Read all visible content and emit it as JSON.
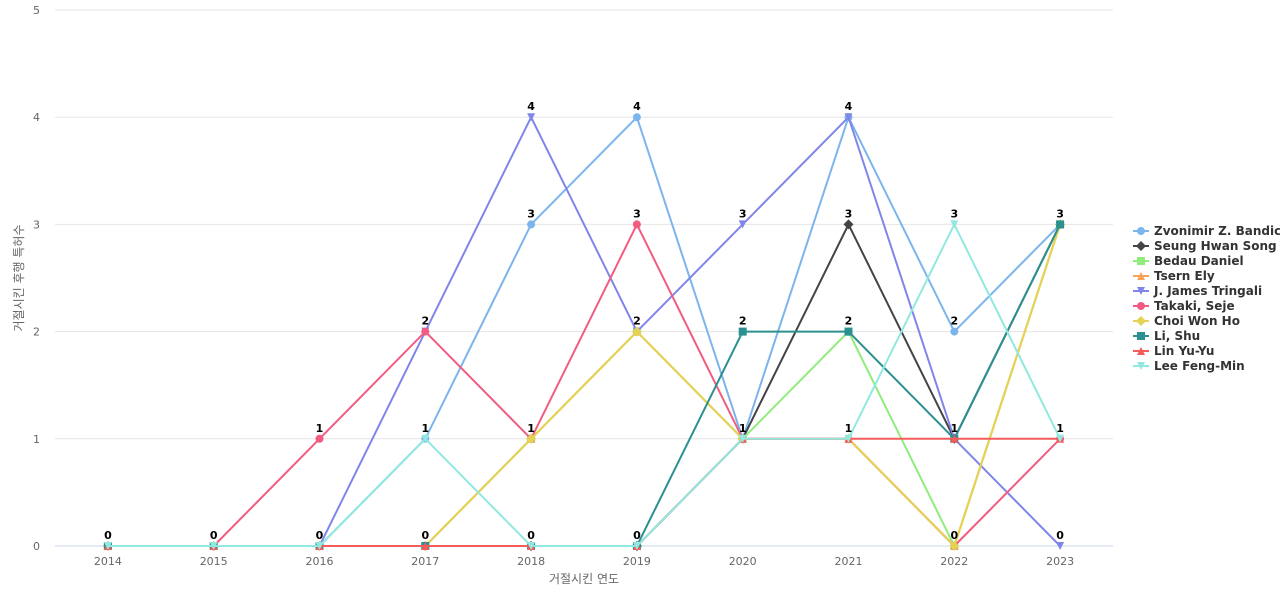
{
  "chart_data": {
    "type": "line",
    "title": "",
    "xlabel": "거절시킨 연도",
    "ylabel": "거절시킨 후행 특허수",
    "categories": [
      "2014",
      "2015",
      "2016",
      "2017",
      "2018",
      "2019",
      "2020",
      "2021",
      "2022",
      "2023"
    ],
    "ylim": [
      0,
      5
    ],
    "yticks": [
      0,
      1,
      2,
      3,
      4,
      5
    ],
    "grid": true,
    "legend_position": "right",
    "data_labels": [
      0,
      0,
      0,
      1,
      3,
      4,
      3,
      4,
      3,
      3
    ],
    "data_labels_extra": [
      {
        "x": "2016",
        "value": 1
      },
      {
        "x": "2017",
        "value": 2
      },
      {
        "x": "2017",
        "value": 0
      },
      {
        "x": "2018",
        "value": 4
      },
      {
        "x": "2018",
        "value": 1
      },
      {
        "x": "2018",
        "value": 0
      },
      {
        "x": "2019",
        "value": 3
      },
      {
        "x": "2019",
        "value": 2
      },
      {
        "x": "2019",
        "value": 0
      },
      {
        "x": "2020",
        "value": 2
      },
      {
        "x": "2020",
        "value": 1
      },
      {
        "x": "2021",
        "value": 3
      },
      {
        "x": "2021",
        "value": 2
      },
      {
        "x": "2021",
        "value": 1
      },
      {
        "x": "2022",
        "value": 2
      },
      {
        "x": "2022",
        "value": 1
      },
      {
        "x": "2022",
        "value": 0
      },
      {
        "x": "2023",
        "value": 1
      },
      {
        "x": "2023",
        "value": 0
      }
    ],
    "series": [
      {
        "name": "Zvonimir Z. Bandic",
        "color": "#7cb5ec",
        "marker": "circle",
        "values": [
          0,
          0,
          0,
          1,
          3,
          4,
          1,
          4,
          2,
          3
        ]
      },
      {
        "name": "Seung Hwan Song",
        "color": "#434348",
        "marker": "diamond",
        "values": [
          0,
          0,
          0,
          0,
          0,
          0,
          1,
          3,
          1,
          3
        ]
      },
      {
        "name": "Bedau Daniel",
        "color": "#90ed7d",
        "marker": "square",
        "values": [
          0,
          0,
          0,
          0,
          1,
          2,
          1,
          2,
          0,
          3
        ]
      },
      {
        "name": "Tsern Ely",
        "color": "#f7a35c",
        "marker": "triangle",
        "values": [
          0,
          0,
          0,
          0,
          1,
          2,
          1,
          1,
          0,
          3
        ]
      },
      {
        "name": "J. James Tringali",
        "color": "#8085e9",
        "marker": "triangle-down",
        "values": [
          0,
          0,
          0,
          2,
          4,
          2,
          3,
          4,
          1,
          0
        ]
      },
      {
        "name": "Takaki, Seje",
        "color": "#f15c80",
        "marker": "circle",
        "values": [
          0,
          0,
          1,
          2,
          1,
          3,
          1,
          1,
          0,
          1
        ]
      },
      {
        "name": "Choi Won Ho",
        "color": "#e4d354",
        "marker": "diamond",
        "values": [
          0,
          0,
          0,
          0,
          1,
          2,
          1,
          1,
          0,
          3
        ]
      },
      {
        "name": "Li, Shu",
        "color": "#2b908f",
        "marker": "square",
        "values": [
          0,
          0,
          0,
          0,
          0,
          0,
          2,
          2,
          1,
          3
        ]
      },
      {
        "name": "Lin Yu-Yu",
        "color": "#f45b5b",
        "marker": "triangle",
        "values": [
          0,
          0,
          0,
          0,
          0,
          0,
          1,
          1,
          1,
          1
        ]
      },
      {
        "name": "Lee Feng-Min",
        "color": "#91e8e1",
        "marker": "triangle-down",
        "values": [
          0,
          0,
          0,
          1,
          0,
          0,
          1,
          1,
          3,
          1
        ]
      }
    ]
  }
}
